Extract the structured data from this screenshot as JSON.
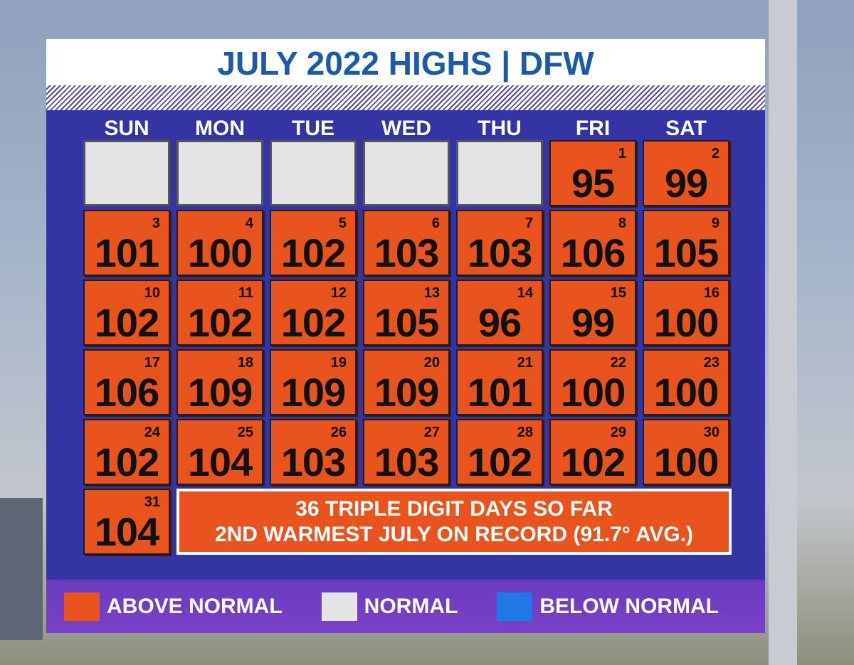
{
  "header": {
    "title": "JULY 2022 HIGHS | DFW"
  },
  "weekdays": [
    "SUN",
    "MON",
    "TUE",
    "WED",
    "THU",
    "FRI",
    "SAT"
  ],
  "days": [
    {
      "date": "1",
      "high": "95"
    },
    {
      "date": "2",
      "high": "99"
    },
    {
      "date": "3",
      "high": "101"
    },
    {
      "date": "4",
      "high": "100"
    },
    {
      "date": "5",
      "high": "102"
    },
    {
      "date": "6",
      "high": "103"
    },
    {
      "date": "7",
      "high": "103"
    },
    {
      "date": "8",
      "high": "106"
    },
    {
      "date": "9",
      "high": "105"
    },
    {
      "date": "10",
      "high": "102"
    },
    {
      "date": "11",
      "high": "102"
    },
    {
      "date": "12",
      "high": "102"
    },
    {
      "date": "13",
      "high": "105"
    },
    {
      "date": "14",
      "high": "96"
    },
    {
      "date": "15",
      "high": "99"
    },
    {
      "date": "16",
      "high": "100"
    },
    {
      "date": "17",
      "high": "106"
    },
    {
      "date": "18",
      "high": "109"
    },
    {
      "date": "19",
      "high": "109"
    },
    {
      "date": "20",
      "high": "109"
    },
    {
      "date": "21",
      "high": "101"
    },
    {
      "date": "22",
      "high": "100"
    },
    {
      "date": "23",
      "high": "100"
    },
    {
      "date": "24",
      "high": "102"
    },
    {
      "date": "25",
      "high": "104"
    },
    {
      "date": "26",
      "high": "103"
    },
    {
      "date": "27",
      "high": "103"
    },
    {
      "date": "28",
      "high": "102"
    },
    {
      "date": "29",
      "high": "102"
    },
    {
      "date": "30",
      "high": "100"
    },
    {
      "date": "31",
      "high": "104"
    }
  ],
  "banner": {
    "lines": [
      "36 TRIPLE DIGIT DAYS SO FAR",
      "2ND WARMEST JULY ON RECORD (91.7° AVG.)"
    ]
  },
  "legend": [
    {
      "label": "ABOVE NORMAL",
      "color": "#e8531e"
    },
    {
      "label": "NORMAL",
      "color": "#e4e4e4"
    },
    {
      "label": "BELOW NORMAL",
      "color": "#1f78e6"
    }
  ]
}
